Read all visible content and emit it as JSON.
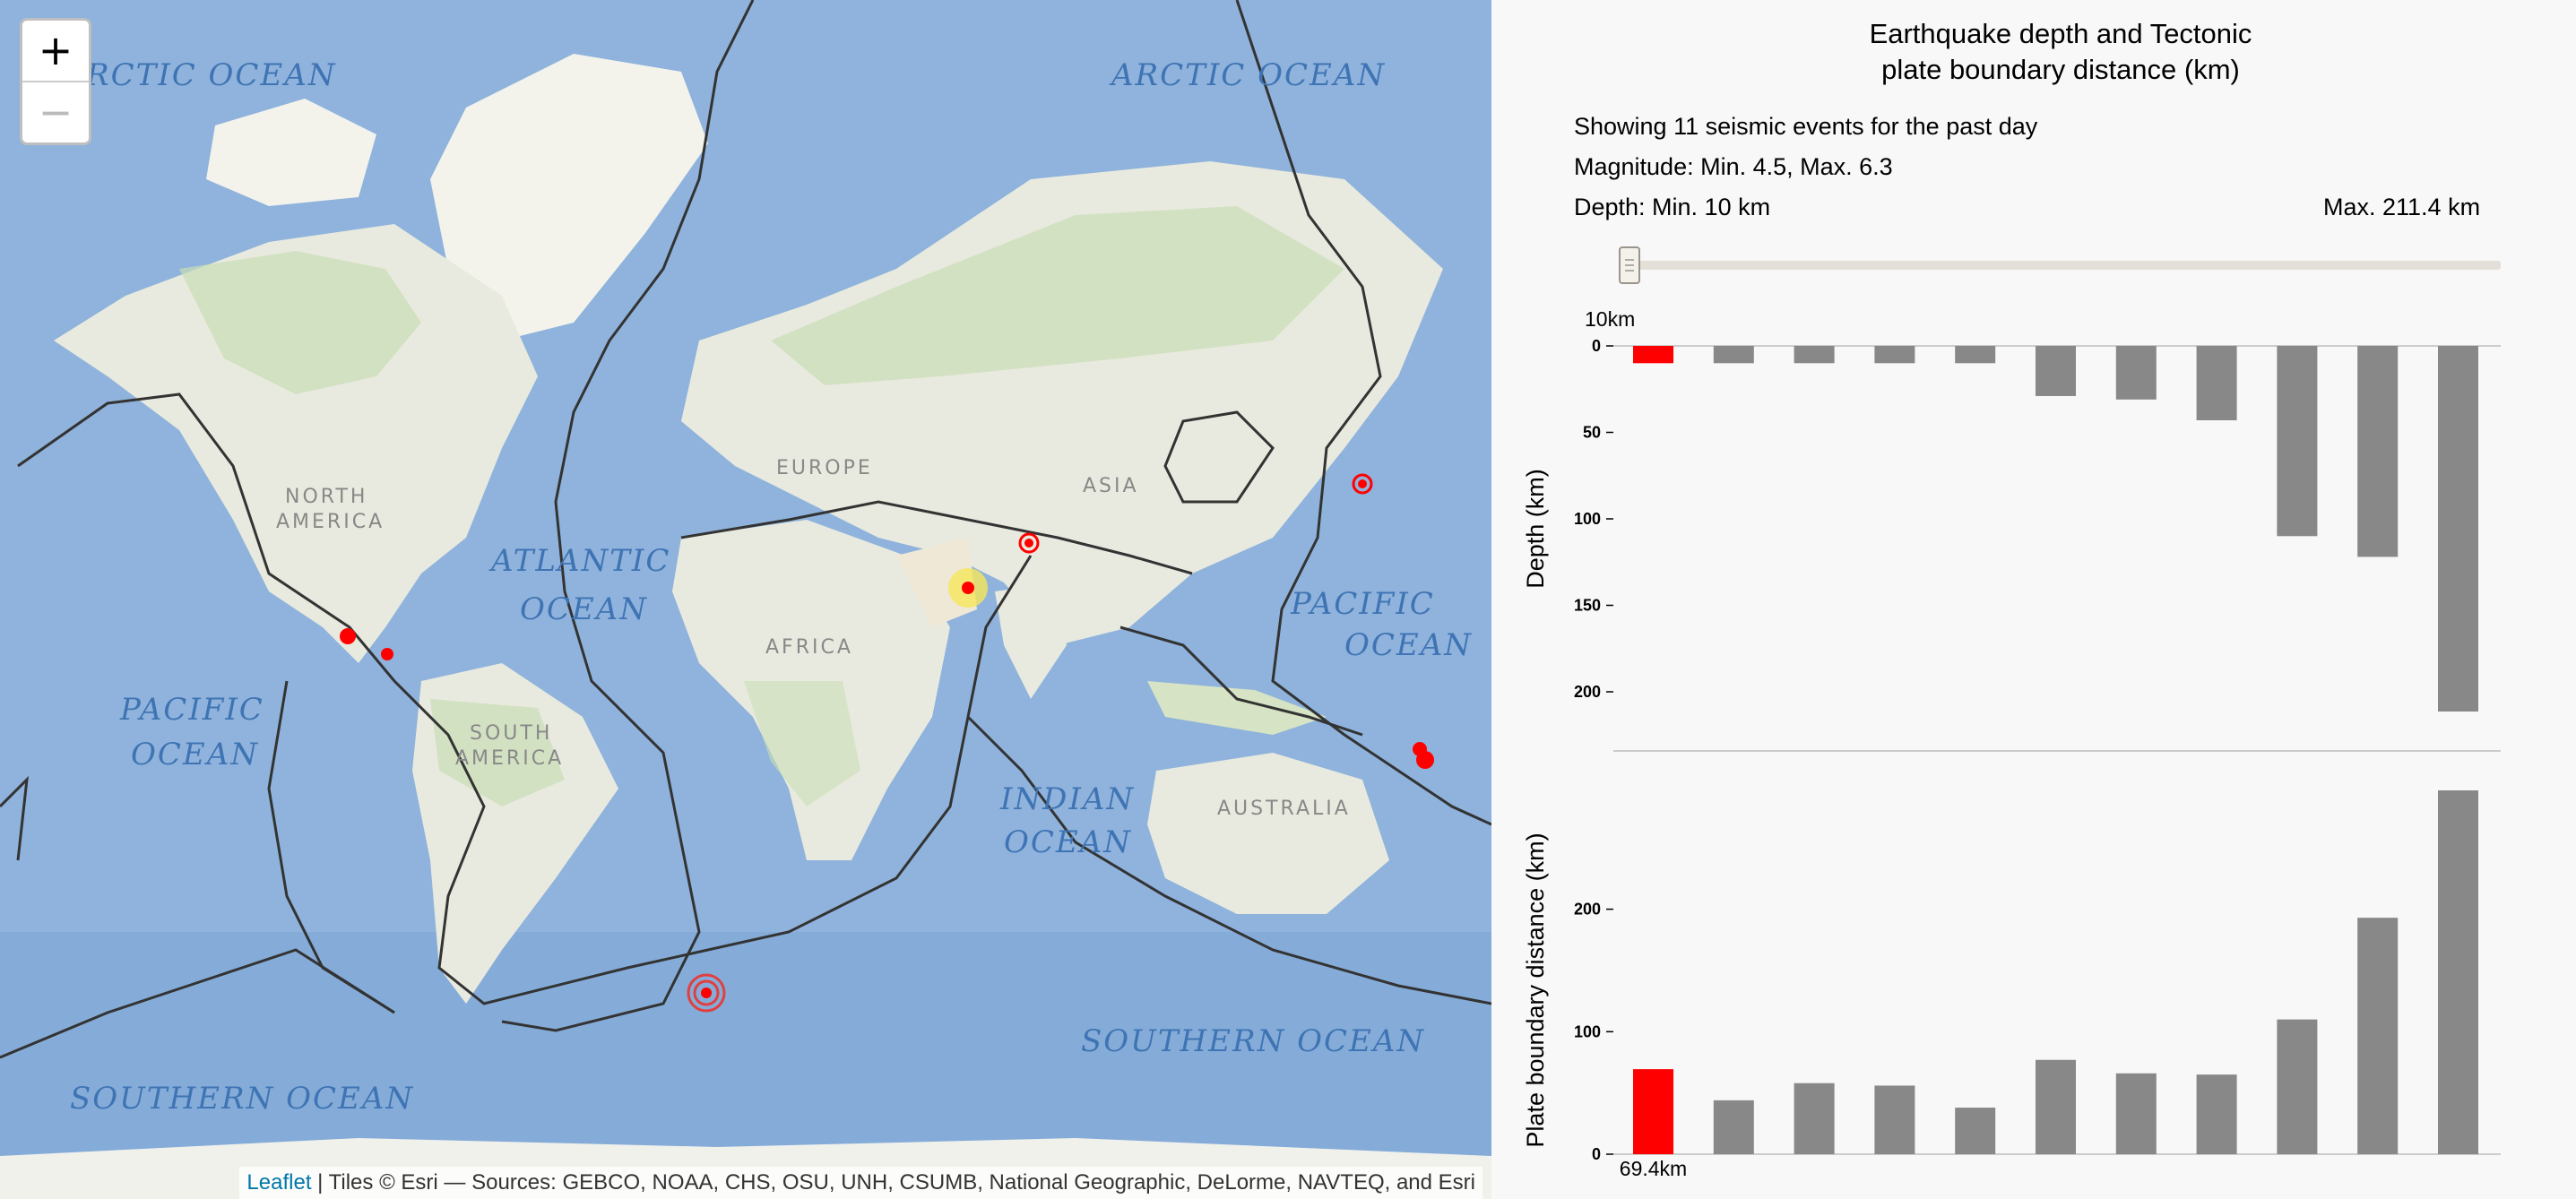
{
  "map": {
    "zoom_in": "+",
    "zoom_out": "−",
    "attribution_link": "Leaflet",
    "attribution_text": " | Tiles © Esri — Sources: GEBCO, NOAA, CHS, OSU, UNH, CSUMB, National Geographic, DeLorme, NAVTEQ, and Esri",
    "ocean_labels": [
      "RCTIC OCEAN",
      "ARCTIC OCEAN",
      "ATLANTIC",
      "OCEAN",
      "PACIFIC",
      "OCEAN",
      "INDIAN",
      "OCEAN",
      "PACIFIC",
      "OCEAN",
      "SOUTHERN OCEAN",
      "SOUTHERN OCEAN"
    ],
    "continent_labels": [
      "NORTH",
      "AMERICA",
      "EUROPE",
      "ASIA",
      "AFRICA",
      "SOUTH",
      "AMERICA",
      "AUSTRALIA"
    ],
    "colors": {
      "ocean": "#8fb3dc",
      "land": "#e9eadf",
      "plate_line": "#333333",
      "quake": "#ff0000",
      "highlight": "#f5e65a"
    }
  },
  "panel": {
    "title_line1": "Earthquake depth and Tectonic",
    "title_line2": "plate boundary distance (km)",
    "summary": "Showing 11 seismic events for the past day",
    "magnitude": "Magnitude: Min. 4.5,  Max. 6.3",
    "depth_min": "Depth: Min. 10 km",
    "depth_max": "Max. 211.4 km",
    "slider_value_label": "10km",
    "slider_fraction": 0.0
  },
  "chart_data": [
    {
      "type": "bar",
      "ylabel": "Depth (km)",
      "yticks": [
        0,
        50,
        100,
        150,
        200
      ],
      "ylim": [
        0,
        211.4
      ],
      "inverted": true,
      "values": [
        10,
        10,
        10,
        10,
        10,
        29,
        31,
        43,
        110,
        122,
        211.4
      ],
      "highlight_index": 0,
      "colors": {
        "bar": "#888888",
        "highlight": "#ff0000"
      }
    },
    {
      "type": "bar",
      "ylabel": "Plate boundary distance (km)",
      "yticks": [
        0,
        100,
        200
      ],
      "ylim": [
        0,
        297
      ],
      "values": [
        69.4,
        44,
        58,
        56,
        38,
        77,
        66,
        65,
        110,
        193,
        297
      ],
      "highlight_index": 0,
      "highlight_label": "69.4km",
      "colors": {
        "bar": "#888888",
        "highlight": "#ff0000"
      }
    }
  ]
}
